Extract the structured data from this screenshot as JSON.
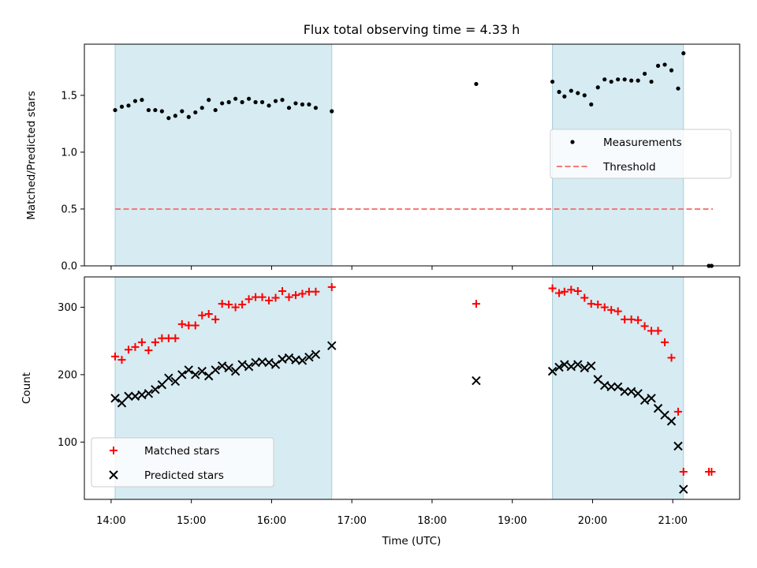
{
  "chart_data": [
    {
      "type": "scatter",
      "title": "Flux total observing time = 4.33 h",
      "xlabel": "",
      "ylabel": "Matched/Predicted stars",
      "xlim": [
        "13:40",
        "21:50"
      ],
      "ylim": [
        0,
        1.95
      ],
      "yticks": [
        "0.0",
        "0.5",
        "1.0",
        "1.5"
      ],
      "shaded_spans": [
        [
          "14:03",
          "16:45"
        ],
        [
          "19:30",
          "21:08"
        ]
      ],
      "legend": {
        "position": "center-right",
        "entries": [
          "Measurements",
          "Threshold"
        ]
      },
      "series": [
        {
          "name": "Measurements",
          "marker": "dot",
          "color": "#000000",
          "points": [
            [
              "14:03",
              1.37
            ],
            [
              "14:08",
              1.4
            ],
            [
              "14:13",
              1.41
            ],
            [
              "14:18",
              1.45
            ],
            [
              "14:23",
              1.46
            ],
            [
              "14:28",
              1.37
            ],
            [
              "14:33",
              1.37
            ],
            [
              "14:38",
              1.36
            ],
            [
              "14:43",
              1.3
            ],
            [
              "14:48",
              1.32
            ],
            [
              "14:53",
              1.36
            ],
            [
              "14:58",
              1.31
            ],
            [
              "15:03",
              1.35
            ],
            [
              "15:08",
              1.39
            ],
            [
              "15:13",
              1.46
            ],
            [
              "15:18",
              1.37
            ],
            [
              "15:23",
              1.43
            ],
            [
              "15:28",
              1.44
            ],
            [
              "15:33",
              1.47
            ],
            [
              "15:38",
              1.44
            ],
            [
              "15:43",
              1.47
            ],
            [
              "15:48",
              1.44
            ],
            [
              "15:53",
              1.44
            ],
            [
              "15:58",
              1.41
            ],
            [
              "16:03",
              1.45
            ],
            [
              "16:08",
              1.46
            ],
            [
              "16:13",
              1.39
            ],
            [
              "16:18",
              1.43
            ],
            [
              "16:23",
              1.42
            ],
            [
              "16:28",
              1.42
            ],
            [
              "16:33",
              1.39
            ],
            [
              "16:45",
              1.36
            ],
            [
              "18:33",
              1.6
            ],
            [
              "19:30",
              1.62
            ],
            [
              "19:35",
              1.53
            ],
            [
              "19:39",
              1.49
            ],
            [
              "19:44",
              1.54
            ],
            [
              "19:49",
              1.52
            ],
            [
              "19:54",
              1.5
            ],
            [
              "19:59",
              1.42
            ],
            [
              "20:04",
              1.57
            ],
            [
              "20:09",
              1.64
            ],
            [
              "20:14",
              1.62
            ],
            [
              "20:19",
              1.64
            ],
            [
              "20:24",
              1.64
            ],
            [
              "20:29",
              1.63
            ],
            [
              "20:34",
              1.63
            ],
            [
              "20:39",
              1.69
            ],
            [
              "20:44",
              1.62
            ],
            [
              "20:49",
              1.76
            ],
            [
              "20:54",
              1.77
            ],
            [
              "20:59",
              1.72
            ],
            [
              "21:04",
              1.56
            ],
            [
              "21:08",
              1.87
            ],
            [
              "21:27",
              0.0
            ],
            [
              "21:29",
              0.0
            ]
          ]
        },
        {
          "name": "Threshold",
          "style": "dashed",
          "color": "#f47a7a",
          "points": [
            [
              "14:03",
              0.5
            ],
            [
              "21:30",
              0.5
            ]
          ]
        }
      ]
    },
    {
      "type": "scatter",
      "title": "",
      "xlabel": "Time (UTC)",
      "ylabel": "Count",
      "xlim": [
        "13:40",
        "21:50"
      ],
      "ylim": [
        15,
        345
      ],
      "yticks": [
        "100",
        "200",
        "300"
      ],
      "xticks": [
        "14:00",
        "15:00",
        "16:00",
        "17:00",
        "18:00",
        "19:00",
        "20:00",
        "21:00"
      ],
      "shaded_spans": [
        [
          "14:03",
          "16:45"
        ],
        [
          "19:30",
          "21:08"
        ]
      ],
      "legend": {
        "position": "lower-left",
        "entries": [
          "Matched stars",
          "Predicted stars"
        ]
      },
      "series": [
        {
          "name": "Matched stars",
          "marker": "plus",
          "color": "#ff0000",
          "points": [
            [
              "14:03",
              227
            ],
            [
              "14:08",
              222
            ],
            [
              "14:13",
              237
            ],
            [
              "14:18",
              241
            ],
            [
              "14:23",
              248
            ],
            [
              "14:28",
              236
            ],
            [
              "14:33",
              248
            ],
            [
              "14:38",
              254
            ],
            [
              "14:43",
              254
            ],
            [
              "14:48",
              254
            ],
            [
              "14:53",
              275
            ],
            [
              "14:58",
              273
            ],
            [
              "15:03",
              273
            ],
            [
              "15:08",
              288
            ],
            [
              "15:13",
              290
            ],
            [
              "15:18",
              282
            ],
            [
              "15:23",
              305
            ],
            [
              "15:28",
              304
            ],
            [
              "15:33",
              300
            ],
            [
              "15:38",
              304
            ],
            [
              "15:43",
              312
            ],
            [
              "15:48",
              315
            ],
            [
              "15:53",
              315
            ],
            [
              "15:58",
              310
            ],
            [
              "16:03",
              314
            ],
            [
              "16:08",
              324
            ],
            [
              "16:13",
              315
            ],
            [
              "16:18",
              318
            ],
            [
              "16:23",
              320
            ],
            [
              "16:28",
              323
            ],
            [
              "16:33",
              323
            ],
            [
              "16:45",
              330
            ],
            [
              "18:33",
              305
            ],
            [
              "19:30",
              328
            ],
            [
              "19:35",
              321
            ],
            [
              "19:39",
              323
            ],
            [
              "19:44",
              326
            ],
            [
              "19:49",
              324
            ],
            [
              "19:54",
              314
            ],
            [
              "19:59",
              305
            ],
            [
              "20:04",
              304
            ],
            [
              "20:09",
              300
            ],
            [
              "20:14",
              296
            ],
            [
              "20:19",
              294
            ],
            [
              "20:24",
              282
            ],
            [
              "20:29",
              282
            ],
            [
              "20:34",
              281
            ],
            [
              "20:39",
              272
            ],
            [
              "20:44",
              265
            ],
            [
              "20:49",
              265
            ],
            [
              "20:54",
              248
            ],
            [
              "20:59",
              225
            ],
            [
              "21:04",
              145
            ],
            [
              "21:08",
              56
            ],
            [
              "21:27",
              56
            ],
            [
              "21:29",
              56
            ]
          ]
        },
        {
          "name": "Predicted stars",
          "marker": "x",
          "color": "#000000",
          "points": [
            [
              "14:03",
              165
            ],
            [
              "14:08",
              158
            ],
            [
              "14:13",
              168
            ],
            [
              "14:18",
              168
            ],
            [
              "14:23",
              170
            ],
            [
              "14:28",
              172
            ],
            [
              "14:33",
              178
            ],
            [
              "14:38",
              185
            ],
            [
              "14:43",
              195
            ],
            [
              "14:48",
              190
            ],
            [
              "14:53",
              200
            ],
            [
              "14:58",
              207
            ],
            [
              "15:03",
              200
            ],
            [
              "15:08",
              205
            ],
            [
              "15:13",
              198
            ],
            [
              "15:18",
              207
            ],
            [
              "15:23",
              213
            ],
            [
              "15:28",
              210
            ],
            [
              "15:33",
              205
            ],
            [
              "15:38",
              215
            ],
            [
              "15:43",
              212
            ],
            [
              "15:48",
              218
            ],
            [
              "15:53",
              219
            ],
            [
              "15:58",
              218
            ],
            [
              "16:03",
              215
            ],
            [
              "16:08",
              223
            ],
            [
              "16:13",
              225
            ],
            [
              "16:18",
              222
            ],
            [
              "16:23",
              221
            ],
            [
              "16:28",
              226
            ],
            [
              "16:33",
              230
            ],
            [
              "16:45",
              243
            ],
            [
              "18:33",
              191
            ],
            [
              "19:30",
              205
            ],
            [
              "19:35",
              211
            ],
            [
              "19:39",
              215
            ],
            [
              "19:44",
              212
            ],
            [
              "19:49",
              215
            ],
            [
              "19:54",
              210
            ],
            [
              "19:59",
              213
            ],
            [
              "20:04",
              193
            ],
            [
              "20:09",
              184
            ],
            [
              "20:14",
              182
            ],
            [
              "20:19",
              182
            ],
            [
              "20:24",
              175
            ],
            [
              "20:29",
              175
            ],
            [
              "20:34",
              172
            ],
            [
              "20:39",
              162
            ],
            [
              "20:44",
              165
            ],
            [
              "20:49",
              150
            ],
            [
              "20:54",
              140
            ],
            [
              "20:59",
              131
            ],
            [
              "21:04",
              94
            ],
            [
              "21:08",
              30
            ]
          ]
        }
      ]
    }
  ]
}
